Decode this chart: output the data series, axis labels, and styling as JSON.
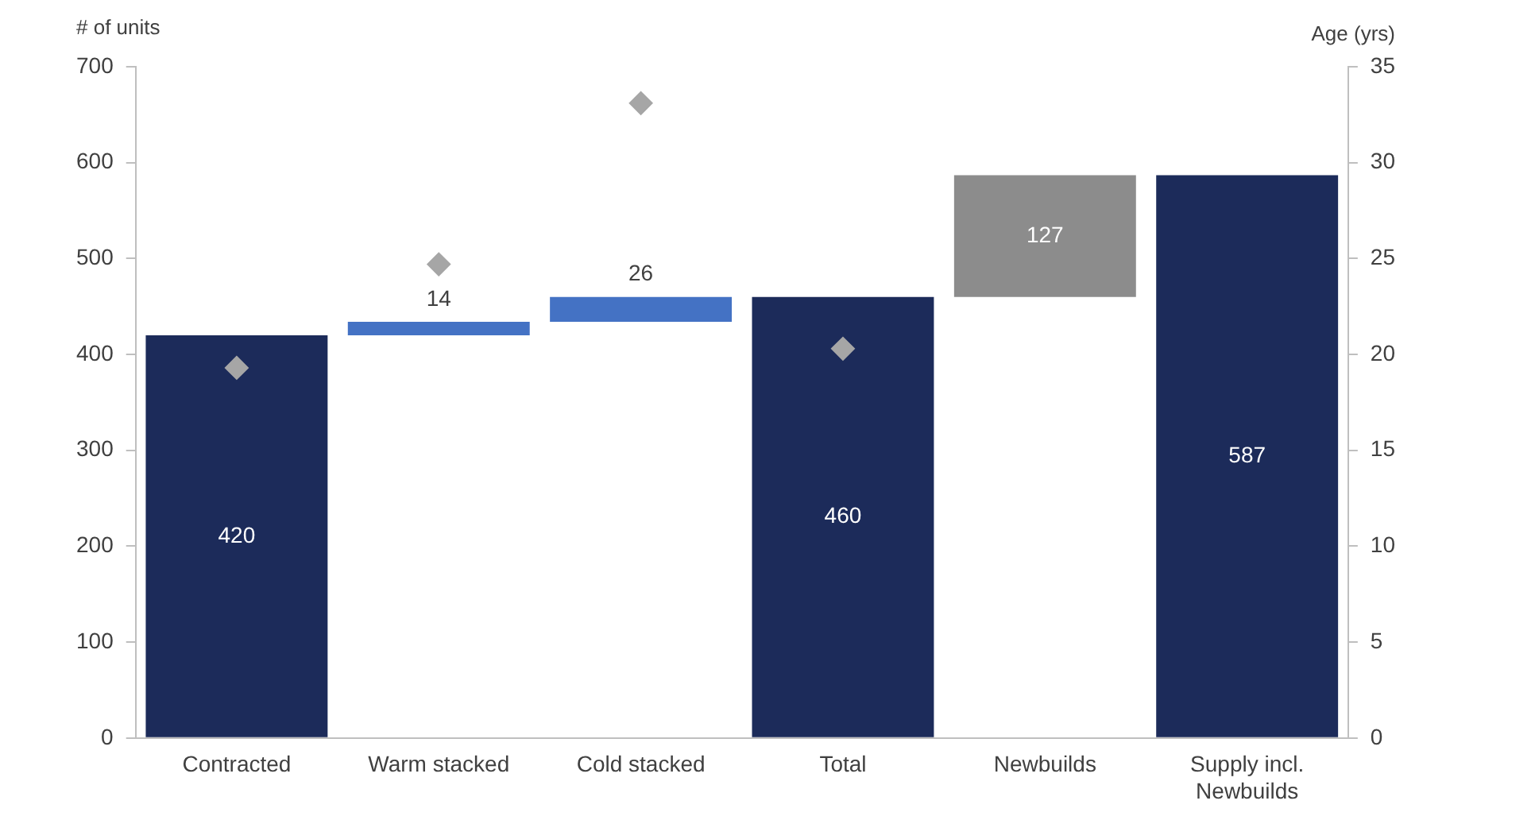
{
  "chart_data": {
    "type": "bar",
    "ylabel": "# of units",
    "y2label": "Age (yrs)",
    "categories": [
      "Contracted",
      "Warm stacked",
      "Cold stacked",
      "Total",
      "Newbuilds",
      "Supply incl. Newbuilds"
    ],
    "series": [
      {
        "values": [
          420,
          14,
          26,
          460,
          127,
          587
        ],
        "value_labels": [
          "420",
          "14",
          "26",
          "460",
          "127",
          "587"
        ],
        "base": [
          0,
          420,
          434,
          0,
          460,
          0
        ],
        "colors": [
          "#1c2b5a",
          "#4472c4",
          "#4472c4",
          "#1c2b5a",
          "#8c8c8c",
          "#1c2b5a"
        ]
      },
      {
        "type": "scatter",
        "axis": "y2",
        "x": [
          "Contracted",
          "Warm stacked",
          "Cold stacked",
          "Total"
        ],
        "values": [
          19.3,
          24.7,
          33.1,
          20.3
        ],
        "color": "#a6a6a6",
        "marker": "diamond"
      }
    ],
    "ylim": [
      0,
      700
    ],
    "yticks": [
      0,
      100,
      200,
      300,
      400,
      500,
      600,
      700
    ],
    "y2lim": [
      0,
      35
    ],
    "y2ticks": [
      0,
      5,
      10,
      15,
      20,
      25,
      30,
      35
    ],
    "grid": false,
    "legend": false
  }
}
